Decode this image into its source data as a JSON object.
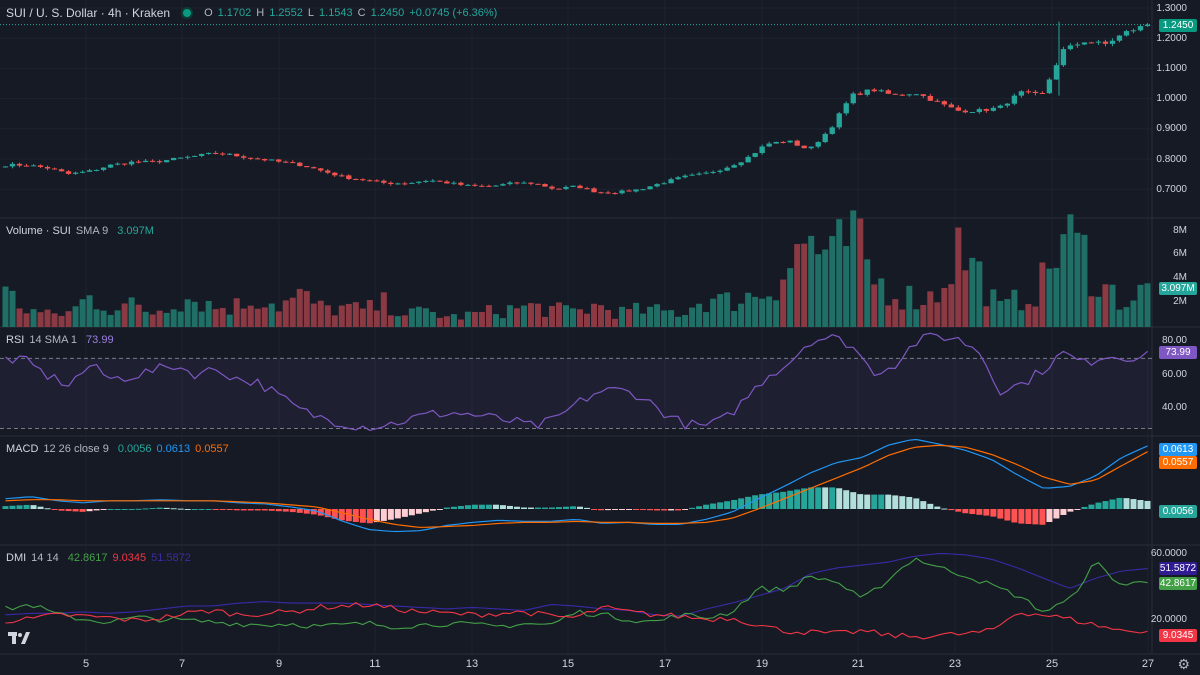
{
  "header": {
    "symbol": "SUI / U. S. Dollar · 4h · Kraken",
    "o_label": "O",
    "o": "1.1702",
    "h_label": "H",
    "h": "1.2552",
    "l_label": "L",
    "l": "1.1543",
    "c_label": "C",
    "c": "1.2450",
    "change": "+0.0745 (+6.36%)"
  },
  "volume_legend": {
    "title": "Volume · SUI",
    "sma": "SMA 9",
    "value": "3.097M"
  },
  "rsi_legend": {
    "title": "RSI",
    "params": "14 SMA 1",
    "value": "73.99"
  },
  "macd_legend": {
    "title": "MACD",
    "params": "12 26 close 9",
    "hist": "0.0056",
    "macd": "0.0613",
    "signal": "0.0557"
  },
  "dmi_legend": {
    "title": "DMI",
    "params": "14 14",
    "plus": "42.8617",
    "minus": "9.0345",
    "adx": "51.5872"
  },
  "tags": {
    "price": "1.2450",
    "volume": "3.097M",
    "rsi": "73.99",
    "macd": "0.0613",
    "signal": "0.0557",
    "hist": "0.0056",
    "adx": "51.5872",
    "plus": "42.8617",
    "minus": "9.0345"
  },
  "axes": {
    "price": [
      "1.3000",
      "1.2000",
      "1.1000",
      "1.0000",
      "0.9000",
      "0.8000",
      "0.7000"
    ],
    "volume": [
      "8M",
      "6M",
      "4M",
      "2M"
    ],
    "rsi": [
      "80.00",
      "60.00",
      "40.00"
    ],
    "dmi": [
      "60.0000",
      "20.0000"
    ],
    "dates": [
      "5",
      "7",
      "9",
      "11",
      "13",
      "15",
      "17",
      "19",
      "21",
      "23",
      "25",
      "27"
    ]
  },
  "colors": {
    "up": "#26a69a",
    "down": "#ef5350",
    "rsi": "#7e57c2",
    "macd": "#2962ff",
    "signal": "#ff6d00",
    "plus": "#43a047",
    "minus": "#f23645",
    "adx": "#311b92"
  },
  "chart_data": {
    "type": "candlestick",
    "timeframe": "4h",
    "price_anchors": [
      0.78,
      0.78,
      0.77,
      0.75,
      0.76,
      0.78,
      0.79,
      0.79,
      0.8,
      0.81,
      0.82,
      0.81,
      0.8,
      0.79,
      0.78,
      0.76,
      0.74,
      0.73,
      0.72,
      0.72,
      0.73,
      0.72,
      0.71,
      0.71,
      0.72,
      0.72,
      0.7,
      0.71,
      0.69,
      0.69,
      0.7,
      0.72,
      0.74,
      0.75,
      0.77,
      0.8,
      0.85,
      0.86,
      0.83,
      0.9,
      1.01,
      1.03,
      1.01,
      1.02,
      0.99,
      0.96,
      0.96,
      0.97,
      1.02,
      1.01,
      1.16,
      1.19,
      1.18,
      1.22,
      1.245
    ],
    "volume_anchors": [
      2.8,
      1.5,
      1.0,
      1.2,
      2.5,
      1.6,
      1.8,
      1.2,
      2.3,
      2.4,
      1.6,
      1.8,
      2.5,
      1.8,
      2.6,
      1.5,
      1.6,
      1.4,
      2.0,
      1.1,
      1.3,
      0.8,
      1.0,
      1.3,
      1.5,
      1.7,
      1.4,
      1.3,
      1.8,
      1.2,
      1.4,
      1.3,
      1.2,
      2.3,
      2.1,
      2.5,
      3.0,
      5.0,
      7.5,
      5.2,
      7.6,
      4.0,
      3.0,
      2.4,
      2.6,
      6.7,
      4.5,
      1.5,
      2.4,
      3.5,
      7.6,
      6.0,
      3.2,
      2.1,
      3.097
    ],
    "volume_ylim": [
      0,
      9
    ],
    "rsi_anchors": [
      70,
      68,
      60,
      55,
      66,
      58,
      60,
      63,
      66,
      61,
      64,
      58,
      56,
      48,
      40,
      36,
      33,
      31,
      32,
      35,
      38,
      39,
      38,
      36,
      34,
      31,
      35,
      44,
      51,
      52,
      49,
      40,
      33,
      31,
      35,
      47,
      60,
      67,
      80,
      82,
      78,
      62,
      66,
      79,
      83,
      81,
      75,
      52,
      55,
      63,
      73,
      67,
      72,
      70,
      73.99
    ],
    "rsi_ylim": [
      28,
      85
    ],
    "macd_ylim": [
      -0.035,
      0.07
    ],
    "macd_anchors": [
      0.01,
      0.012,
      0.008,
      0.006,
      0.008,
      0.008,
      0.009,
      0.008,
      0.008,
      0.006,
      0.005,
      0.002,
      -0.002,
      -0.012,
      -0.02,
      -0.022,
      -0.021,
      -0.016,
      -0.013,
      -0.011,
      -0.012,
      -0.012,
      -0.01,
      -0.014,
      -0.013,
      -0.015,
      -0.015,
      -0.01,
      -0.003,
      0.01,
      0.022,
      0.035,
      0.045,
      0.05,
      0.062,
      0.068,
      0.063,
      0.057,
      0.048,
      0.033,
      0.02,
      0.022,
      0.032,
      0.05,
      0.0613
    ],
    "signal_anchors": [
      0.008,
      0.009,
      0.009,
      0.008,
      0.008,
      0.008,
      0.008,
      0.008,
      0.008,
      0.007,
      0.006,
      0.004,
      0.002,
      -0.004,
      -0.01,
      -0.015,
      -0.018,
      -0.017,
      -0.016,
      -0.014,
      -0.013,
      -0.013,
      -0.012,
      -0.013,
      -0.013,
      -0.014,
      -0.014,
      -0.013,
      -0.009,
      0.0,
      0.01,
      0.02,
      0.03,
      0.04,
      0.052,
      0.06,
      0.062,
      0.06,
      0.053,
      0.043,
      0.031,
      0.024,
      0.028,
      0.042,
      0.0557
    ],
    "dmi_ylim": [
      0,
      65
    ],
    "plus_anchors": [
      24,
      27,
      20,
      17,
      15,
      18,
      17,
      16,
      15,
      14,
      13,
      14,
      12,
      13,
      14,
      12,
      13,
      14,
      13,
      12,
      14,
      13,
      22,
      20,
      17,
      15,
      20,
      18,
      22,
      38,
      37,
      46,
      43,
      30,
      44,
      59,
      52,
      47,
      40,
      33,
      22,
      30,
      56,
      40,
      42.86
    ],
    "minus_anchors": [
      16,
      17,
      20,
      19,
      18,
      16,
      18,
      21,
      23,
      20,
      21,
      22,
      25,
      26,
      27,
      24,
      22,
      21,
      20,
      21,
      22,
      19,
      18,
      25,
      22,
      20,
      19,
      17,
      18,
      13,
      9,
      8,
      7,
      9,
      6,
      5,
      6,
      7,
      9,
      22,
      20,
      17,
      13,
      9,
      9.03
    ],
    "adx_anchors": [
      20,
      21,
      21,
      22,
      21,
      22,
      24,
      26,
      26,
      28,
      29,
      28,
      28,
      28,
      27,
      26,
      25,
      24,
      25,
      24,
      23,
      27,
      26,
      24,
      23,
      20,
      19,
      24,
      28,
      33,
      38,
      48,
      52,
      54,
      56,
      60,
      62,
      61,
      58,
      52,
      45,
      38,
      45,
      50,
      51.59
    ]
  }
}
